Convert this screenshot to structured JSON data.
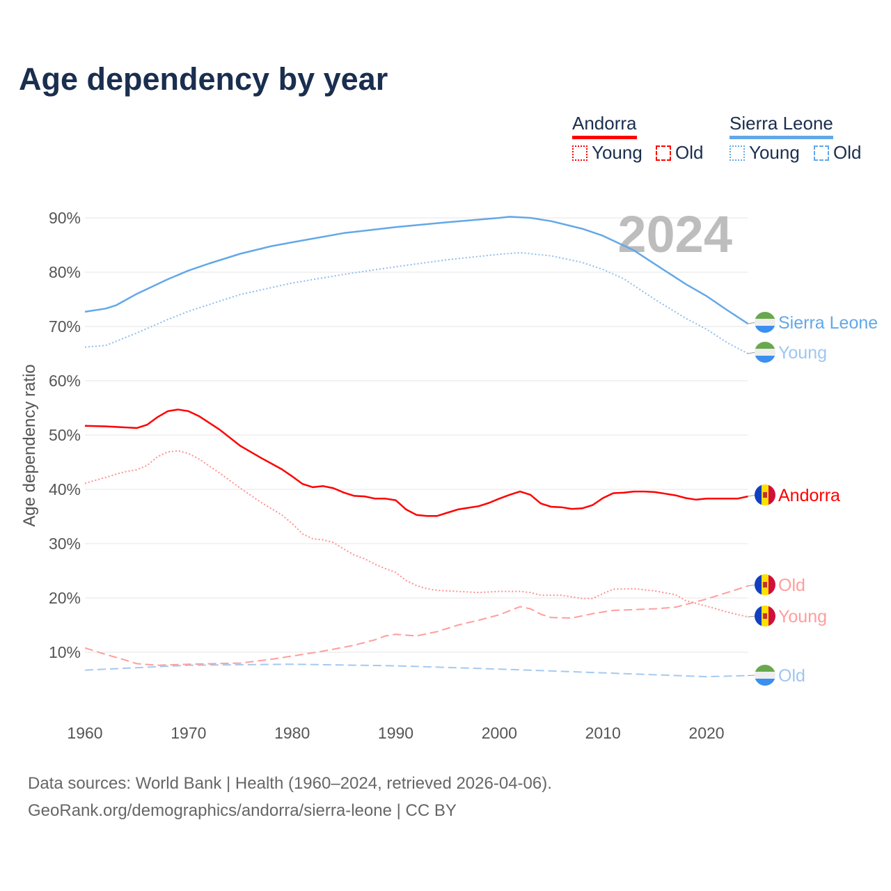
{
  "chart_data": {
    "type": "line",
    "title": "Age dependency by year",
    "xlabel": "",
    "ylabel": "Age dependency ratio",
    "xlim": [
      1960,
      2024
    ],
    "ylim": [
      0,
      95
    ],
    "x_ticks": [
      "1960",
      "1970",
      "1980",
      "1990",
      "2000",
      "2010",
      "2020"
    ],
    "y_ticks": [
      "10%",
      "20%",
      "30%",
      "40%",
      "50%",
      "60%",
      "70%",
      "80%",
      "90%"
    ],
    "grid": true,
    "year_label": "2024",
    "legend": {
      "groups": [
        {
          "name": "Andorra",
          "color": "#ff0000",
          "items": [
            "Young",
            "Old"
          ]
        },
        {
          "name": "Sierra Leone",
          "color": "#62a8e8",
          "items": [
            "Young",
            "Old"
          ]
        }
      ]
    },
    "series": [
      {
        "name": "Sierra Leone",
        "country": "Sierra Leone",
        "kind": "total",
        "end_label": "Sierra Leone",
        "color": "#62a8e8",
        "label_color": "#62a8e8",
        "dash": "",
        "x": [
          1960,
          1962,
          1963,
          1965,
          1968,
          1970,
          1972,
          1975,
          1978,
          1980,
          1985,
          1990,
          1995,
          2000,
          2001,
          2003,
          2005,
          2008,
          2010,
          2013,
          2015,
          2018,
          2020,
          2022,
          2024
        ],
        "y": [
          72.7,
          73.3,
          73.9,
          76,
          78.7,
          80.3,
          81.6,
          83.4,
          84.8,
          85.5,
          87.2,
          88.3,
          89.2,
          90,
          90.2,
          90,
          89.4,
          88,
          86.7,
          84,
          81.5,
          77.8,
          75.6,
          73,
          70.5
        ]
      },
      {
        "name": "Sierra Leone Young",
        "country": "Sierra Leone",
        "kind": "young",
        "end_label": "Young",
        "color": "#8fbcee",
        "label_color": "#9fc6f0",
        "dash": "2,3",
        "x": [
          1960,
          1962,
          1965,
          1968,
          1970,
          1975,
          1980,
          1985,
          1990,
          1995,
          2000,
          2002,
          2005,
          2008,
          2010,
          2012,
          2015,
          2018,
          2020,
          2022,
          2024
        ],
        "y": [
          66.2,
          66.5,
          68.8,
          71.3,
          72.8,
          75.9,
          78,
          79.6,
          81,
          82.3,
          83.3,
          83.6,
          83,
          81.8,
          80.5,
          78.8,
          75,
          71.5,
          69.5,
          67,
          65
        ]
      },
      {
        "name": "Sierra Leone Old",
        "country": "Sierra Leone",
        "kind": "old",
        "end_label": "Old",
        "color": "#a5c9f0",
        "label_color": "#9fc6f0",
        "dash": "12,6",
        "x": [
          1960,
          1970,
          1980,
          1990,
          2000,
          2010,
          2020,
          2024
        ],
        "y": [
          6.7,
          7.6,
          7.8,
          7.5,
          6.9,
          6.2,
          5.5,
          5.7
        ]
      },
      {
        "name": "Andorra",
        "country": "Andorra",
        "kind": "total",
        "end_label": "Andorra",
        "color": "#ff0000",
        "label_color": "#ff0000",
        "dash": "",
        "x": [
          1960,
          1962,
          1965,
          1966,
          1967,
          1968,
          1969,
          1970,
          1971,
          1973,
          1975,
          1977,
          1979,
          1980,
          1981,
          1982,
          1983,
          1984,
          1985,
          1986,
          1987,
          1988,
          1989,
          1990,
          1991,
          1992,
          1993,
          1994,
          1995,
          1996,
          1997,
          1998,
          1999,
          2000,
          2001,
          2002,
          2003,
          2004,
          2005,
          2006,
          2007,
          2008,
          2009,
          2010,
          2011,
          2012,
          2013,
          2014,
          2015,
          2016,
          2017,
          2018,
          2019,
          2020,
          2021,
          2022,
          2023,
          2024
        ],
        "y": [
          51.7,
          51.6,
          51.3,
          51.9,
          53.3,
          54.4,
          54.7,
          54.4,
          53.5,
          51.0,
          48,
          45.8,
          43.7,
          42.4,
          41,
          40.4,
          40.6,
          40.2,
          39.4,
          38.8,
          38.7,
          38.3,
          38.3,
          38.0,
          36.3,
          35.3,
          35.1,
          35.1,
          35.7,
          36.3,
          36.6,
          36.9,
          37.5,
          38.3,
          39.0,
          39.6,
          39.0,
          37.4,
          36.8,
          36.7,
          36.4,
          36.5,
          37.1,
          38.4,
          39.3,
          39.4,
          39.6,
          39.6,
          39.5,
          39.2,
          38.9,
          38.4,
          38.1,
          38.3,
          38.3,
          38.3,
          38.3,
          38.7
        ]
      },
      {
        "name": "Andorra Young",
        "country": "Andorra",
        "kind": "young",
        "end_label": "Young",
        "color": "#ff8f8f",
        "label_color": "#ff9d9d",
        "dash": "2,3",
        "x": [
          1960,
          1962,
          1963,
          1964,
          1965,
          1966,
          1967,
          1968,
          1969,
          1970,
          1971,
          1973,
          1975,
          1977,
          1979,
          1980,
          1981,
          1982,
          1983,
          1984,
          1985,
          1986,
          1987,
          1988,
          1989,
          1990,
          1991,
          1992,
          1993,
          1994,
          1995,
          1998,
          2000,
          2002,
          2003,
          2004,
          2006,
          2008,
          2009,
          2010,
          2011,
          2013,
          2015,
          2017,
          2018,
          2020,
          2022,
          2024
        ],
        "y": [
          41.1,
          42.2,
          42.8,
          43.3,
          43.6,
          44.4,
          46.0,
          46.9,
          47.1,
          46.6,
          45.6,
          43.0,
          40.2,
          37.6,
          35.3,
          33.7,
          31.8,
          30.9,
          30.7,
          30.2,
          29.0,
          27.9,
          27.2,
          26.2,
          25.4,
          24.7,
          23.2,
          22.3,
          21.7,
          21.4,
          21.3,
          21.0,
          21.2,
          21.2,
          21.0,
          20.5,
          20.5,
          19.9,
          19.9,
          20.8,
          21.6,
          21.7,
          21.3,
          20.6,
          19.5,
          18.5,
          17.4,
          16.5
        ]
      },
      {
        "name": "Andorra Old",
        "country": "Andorra",
        "kind": "old",
        "end_label": "Old",
        "color": "#ff9d9d",
        "label_color": "#ff9d9d",
        "dash": "12,6",
        "x": [
          1960,
          1962,
          1964,
          1965,
          1967,
          1970,
          1975,
          1978,
          1980,
          1983,
          1986,
          1988,
          1989,
          1990,
          1992,
          1994,
          1996,
          1998,
          2000,
          2002,
          2003,
          2004,
          2005,
          2007,
          2009,
          2011,
          2015,
          2017,
          2020,
          2022,
          2024
        ],
        "y": [
          10.8,
          9.6,
          8.5,
          7.9,
          7.6,
          7.8,
          8.0,
          8.7,
          9.3,
          10.2,
          11.3,
          12.3,
          13.0,
          13.3,
          13.0,
          13.8,
          15.0,
          15.9,
          16.9,
          18.4,
          18.0,
          17.0,
          16.4,
          16.3,
          17.1,
          17.7,
          18.0,
          18.3,
          19.8,
          21.0,
          22.2
        ]
      }
    ]
  },
  "footer": {
    "line1": "Data sources: World Bank | Health (1960–2024, retrieved 2026-04-06).",
    "line2": "GeoRank.org/demographics/andorra/sierra-leone | CC BY"
  }
}
